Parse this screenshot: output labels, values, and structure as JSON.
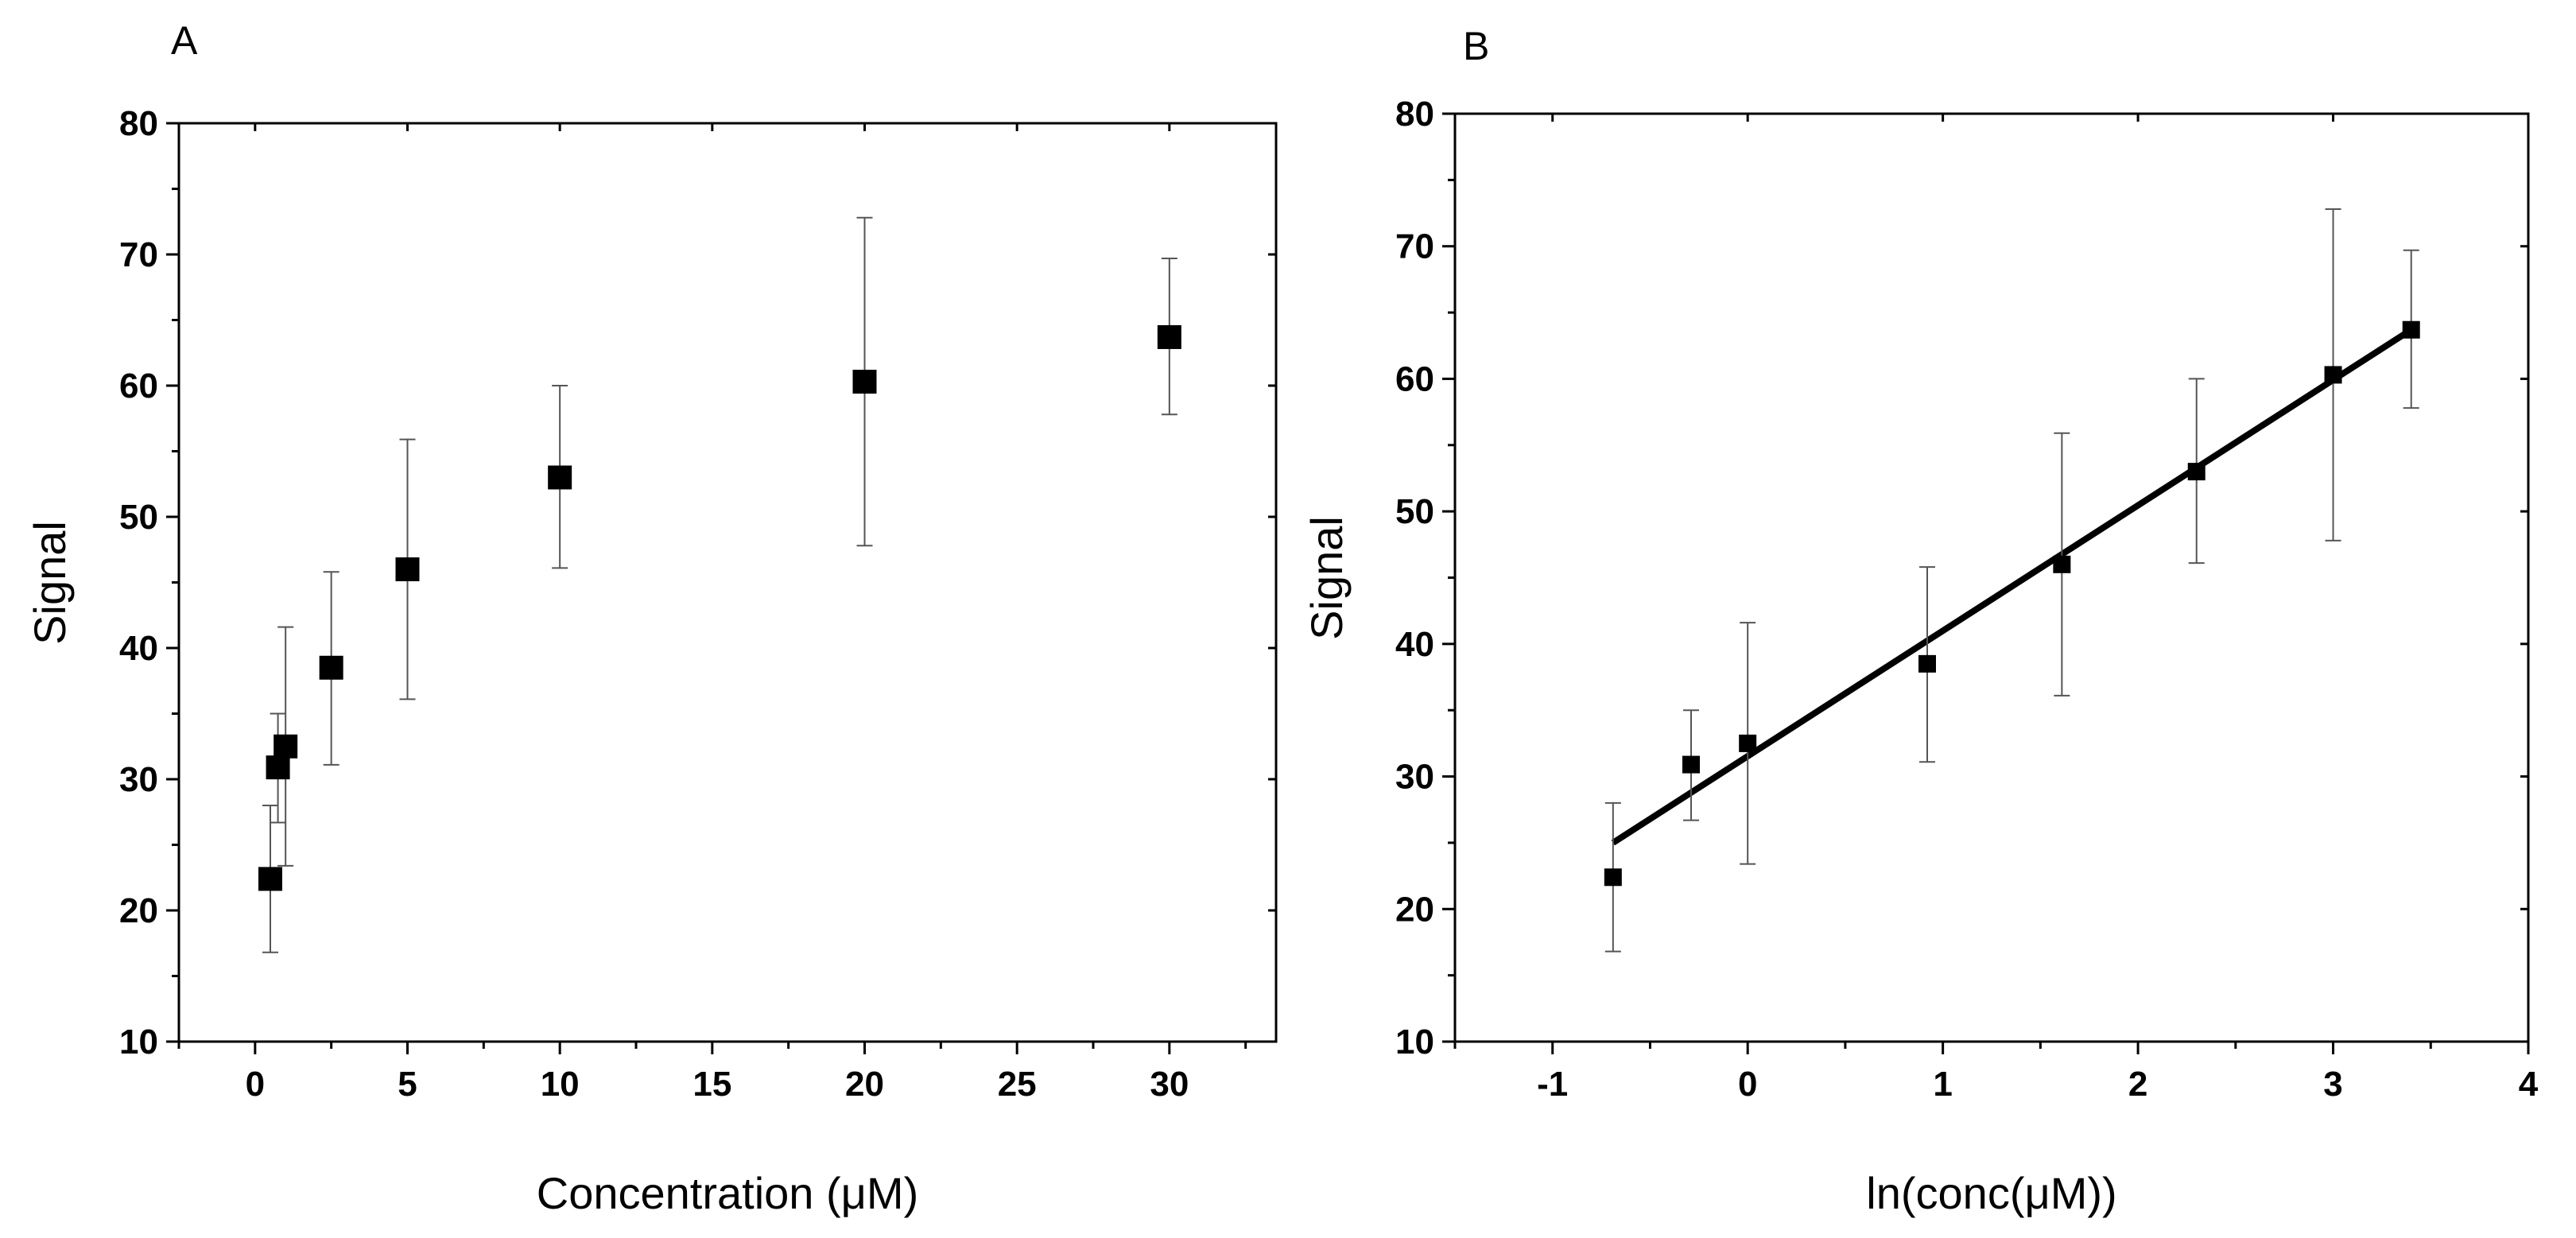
{
  "chart_data": [
    {
      "type": "scatter",
      "panel_label": "A",
      "xlabel": "Concentration (μM)",
      "ylabel": "Signal",
      "xlim": [
        -2.5,
        33.5
      ],
      "ylim": [
        10,
        80
      ],
      "xticks": [
        0,
        5,
        10,
        15,
        20,
        25,
        30
      ],
      "yticks": [
        10,
        20,
        30,
        40,
        50,
        60,
        70,
        80
      ],
      "xtick_labels": [
        "0",
        "5",
        "10",
        "15",
        "20",
        "25",
        "30"
      ],
      "ytick_labels": [
        "10",
        "20",
        "30",
        "40",
        "50",
        "60",
        "70",
        "80"
      ],
      "series": [
        {
          "name": "Signal",
          "x": [
            0.5,
            0.75,
            1,
            2.5,
            5,
            10,
            20,
            30
          ],
          "y": [
            22.4,
            30.9,
            32.5,
            38.5,
            46,
            53,
            60.3,
            63.7
          ],
          "y_err_low": [
            16.8,
            26.7,
            23.4,
            31.1,
            36.1,
            46.1,
            47.8,
            57.8
          ],
          "y_err_high": [
            28,
            35,
            41.6,
            45.8,
            55.9,
            60,
            72.8,
            69.7
          ]
        }
      ]
    },
    {
      "type": "scatter",
      "panel_label": "B",
      "xlabel": "ln(conc(μM))",
      "ylabel": "Signal",
      "xlim": [
        -1.5,
        4
      ],
      "ylim": [
        10,
        80
      ],
      "xticks": [
        -1,
        0,
        1,
        2,
        3,
        4
      ],
      "yticks": [
        10,
        20,
        30,
        40,
        50,
        60,
        70,
        80
      ],
      "xtick_labels": [
        "-1",
        "0",
        "1",
        "2",
        "3",
        "4"
      ],
      "ytick_labels": [
        "10",
        "20",
        "30",
        "40",
        "50",
        "60",
        "70",
        "80"
      ],
      "series": [
        {
          "name": "Signal",
          "x": [
            -0.69,
            -0.29,
            0,
            0.92,
            1.61,
            2.3,
            3,
            3.4
          ],
          "y": [
            22.4,
            30.9,
            32.5,
            38.5,
            46,
            53,
            60.3,
            63.7
          ],
          "y_err_low": [
            16.8,
            26.7,
            23.4,
            31.1,
            36.1,
            46.1,
            47.8,
            57.8
          ],
          "y_err_high": [
            28,
            35,
            41.6,
            45.8,
            55.9,
            60,
            72.8,
            69.7
          ]
        }
      ],
      "fit_line": {
        "x": [
          -0.69,
          3.4
        ],
        "y": [
          25,
          63.7
        ]
      }
    }
  ]
}
